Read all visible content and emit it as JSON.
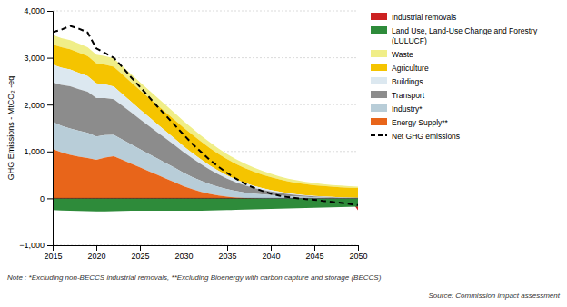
{
  "chart_data": {
    "type": "area",
    "stacked": true,
    "ylabel": "GHG Emissions - MtCO₂ -eq",
    "note": "Note : *Excluding non-BECCS industrial removals, **Excluding Bioenergy with carbon capture and storage (BECCS)",
    "source": "Source: Commission impact assessment",
    "x": [
      2015,
      2016,
      2017,
      2018,
      2019,
      2020,
      2021,
      2022,
      2023,
      2024,
      2025,
      2026,
      2027,
      2028,
      2029,
      2030,
      2031,
      2032,
      2033,
      2034,
      2035,
      2036,
      2037,
      2038,
      2039,
      2040,
      2041,
      2042,
      2043,
      2044,
      2045,
      2046,
      2047,
      2048,
      2049,
      2050
    ],
    "xlim": [
      2015,
      2050
    ],
    "xticks": [
      2015,
      2020,
      2025,
      2030,
      2035,
      2040,
      2045,
      2050
    ],
    "ylim": [
      -1000,
      4000
    ],
    "yticks": [
      {
        "value": -1000,
        "label": "−1,000"
      },
      0,
      {
        "value": 1000,
        "label": "1,000"
      },
      {
        "value": 2000,
        "label": "2,000"
      },
      {
        "value": 3000,
        "label": "3,000"
      },
      {
        "value": 4000,
        "label": "4,000"
      }
    ],
    "grid": true,
    "series": [
      {
        "name": "Industrial removals",
        "color": "#cc2222",
        "values": [
          0,
          0,
          0,
          0,
          0,
          0,
          0,
          0,
          0,
          0,
          0,
          0,
          0,
          0,
          0,
          0,
          0,
          0,
          0,
          0,
          0,
          0,
          0,
          0,
          0,
          0,
          0,
          0,
          0,
          0,
          0,
          0,
          0,
          0,
          0,
          -80
        ]
      },
      {
        "name": "Land Use, Land-Use Change and Forestry\n(LULUCF)",
        "color": "#2e8b3a",
        "values": [
          -250,
          -260,
          -265,
          -270,
          -275,
          -280,
          -280,
          -275,
          -270,
          -265,
          -265,
          -265,
          -265,
          -265,
          -265,
          -265,
          -265,
          -265,
          -260,
          -255,
          -250,
          -245,
          -240,
          -235,
          -230,
          -225,
          -220,
          -215,
          -210,
          -205,
          -200,
          -195,
          -190,
          -185,
          -180,
          -175
        ]
      },
      {
        "name": "Waste",
        "color": "#f0ee88",
        "values": [
          200,
          198,
          196,
          193,
          190,
          187,
          183,
          180,
          176,
          172,
          168,
          163,
          158,
          153,
          148,
          142,
          136,
          130,
          123,
          116,
          109,
          101,
          94,
          87,
          80,
          73,
          66,
          60,
          55,
          50,
          46,
          42,
          38,
          35,
          32,
          30
        ]
      },
      {
        "name": "Agriculture",
        "color": "#f5c400",
        "values": [
          435,
          433,
          431,
          429,
          427,
          425,
          422,
          420,
          417,
          415,
          412,
          409,
          406,
          403,
          400,
          396,
          390,
          382,
          372,
          360,
          348,
          334,
          319,
          304,
          289,
          275,
          262,
          251,
          242,
          234,
          228,
          223,
          218,
          214,
          210,
          207
        ]
      },
      {
        "name": "Buildings",
        "color": "#dce8f0",
        "values": [
          380,
          370,
          360,
          348,
          335,
          315,
          294,
          272,
          250,
          228,
          208,
          190,
          173,
          157,
          142,
          127,
          113,
          100,
          88,
          77,
          67,
          57,
          49,
          41,
          35,
          29,
          24,
          19,
          15,
          12,
          9,
          7,
          5,
          4,
          3,
          2
        ]
      },
      {
        "name": "Transport",
        "color": "#8c8c8c",
        "values": [
          840,
          870,
          900,
          890,
          875,
          820,
          790,
          760,
          720,
          680,
          640,
          600,
          560,
          520,
          480,
          440,
          400,
          355,
          310,
          265,
          225,
          188,
          155,
          126,
          100,
          78,
          60,
          46,
          35,
          26,
          19,
          14,
          10,
          7,
          5,
          4
        ]
      },
      {
        "name": "Industry*",
        "color": "#b8cdd8",
        "values": [
          580,
          570,
          560,
          550,
          540,
          500,
          478,
          456,
          434,
          412,
          390,
          370,
          350,
          330,
          310,
          285,
          260,
          235,
          210,
          185,
          160,
          138,
          118,
          100,
          84,
          70,
          57,
          46,
          37,
          30,
          24,
          19,
          15,
          12,
          10,
          8
        ]
      },
      {
        "name": "Energy Supply**",
        "color": "#e8651a",
        "values": [
          1050,
          980,
          930,
          890,
          860,
          820,
          870,
          900,
          820,
          740,
          660,
          580,
          500,
          420,
          340,
          260,
          195,
          140,
          95,
          60,
          35,
          18,
          8,
          2,
          0,
          0,
          0,
          0,
          0,
          0,
          0,
          0,
          0,
          0,
          0,
          0
        ]
      },
      {
        "name": "Net GHG emissions",
        "type": "line",
        "line_style": "dashed",
        "color": "#000000",
        "values": [
          3550,
          3600,
          3680,
          3620,
          3540,
          3200,
          3100,
          3000,
          2800,
          2580,
          2380,
          2170,
          1960,
          1760,
          1560,
          1360,
          1165,
          990,
          820,
          675,
          540,
          420,
          315,
          230,
          160,
          100,
          58,
          25,
          5,
          -15,
          -30,
          -55,
          -75,
          -95,
          -120,
          -145
        ]
      }
    ]
  }
}
